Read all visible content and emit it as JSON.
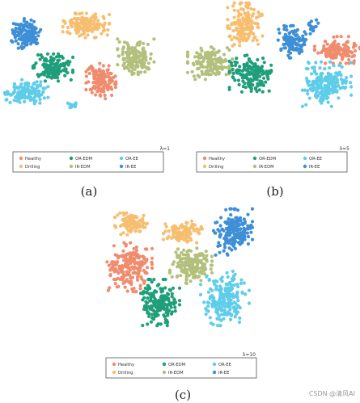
{
  "chart_data": [
    {
      "type": "scatter",
      "caption": "(a)",
      "lambda_label": "λ=1",
      "legend": [
        "Healthy",
        "OR-EDM",
        "OR-EE",
        "Drilling",
        "IR-EDM",
        "IR-EE"
      ],
      "clusters": [
        {
          "class": "IR-EE",
          "cx": 0.12,
          "cy": 0.2,
          "rx": 0.09,
          "ry": 0.11,
          "n": 140
        },
        {
          "class": "Drilling",
          "cx": 0.48,
          "cy": 0.14,
          "rx": 0.14,
          "ry": 0.09,
          "n": 160
        },
        {
          "class": "IR-EDM",
          "cx": 0.78,
          "cy": 0.37,
          "rx": 0.11,
          "ry": 0.13,
          "n": 170
        },
        {
          "class": "OR-EDM",
          "cx": 0.28,
          "cy": 0.45,
          "rx": 0.12,
          "ry": 0.1,
          "n": 150
        },
        {
          "class": "Healthy",
          "cx": 0.57,
          "cy": 0.55,
          "rx": 0.09,
          "ry": 0.13,
          "n": 150
        },
        {
          "class": "OR-EE",
          "cx": 0.12,
          "cy": 0.63,
          "rx": 0.13,
          "ry": 0.09,
          "n": 140
        },
        {
          "class": "OR-EE",
          "cx": 0.4,
          "cy": 0.73,
          "rx": 0.03,
          "ry": 0.03,
          "n": 12
        }
      ]
    },
    {
      "type": "scatter",
      "caption": "(b)",
      "lambda_label": "λ=5",
      "legend": [
        "Healthy",
        "OR-EDM",
        "OR-EE",
        "Drilling",
        "IR-EDM",
        "IR-EE"
      ],
      "clusters": [
        {
          "class": "Drilling",
          "cx": 0.33,
          "cy": 0.17,
          "rx": 0.1,
          "ry": 0.16,
          "n": 160
        },
        {
          "class": "IR-EE",
          "cx": 0.6,
          "cy": 0.3,
          "rx": 0.08,
          "ry": 0.12,
          "n": 110
        },
        {
          "class": "IR-EE",
          "cx": 0.72,
          "cy": 0.18,
          "rx": 0.03,
          "ry": 0.06,
          "n": 20
        },
        {
          "class": "Healthy",
          "cx": 0.86,
          "cy": 0.36,
          "rx": 0.13,
          "ry": 0.1,
          "n": 140
        },
        {
          "class": "IR-EDM",
          "cx": 0.13,
          "cy": 0.46,
          "rx": 0.13,
          "ry": 0.12,
          "n": 150
        },
        {
          "class": "OR-EDM",
          "cx": 0.36,
          "cy": 0.54,
          "rx": 0.12,
          "ry": 0.14,
          "n": 170
        },
        {
          "class": "OR-EE",
          "cx": 0.8,
          "cy": 0.62,
          "rx": 0.14,
          "ry": 0.17,
          "n": 200
        }
      ]
    },
    {
      "type": "scatter",
      "caption": "(c)",
      "lambda_label": "λ=10",
      "legend": [
        "Healthy",
        "OR-EDM",
        "OR-EE",
        "Drilling",
        "IR-EDM",
        "IR-EE"
      ],
      "clusters": [
        {
          "class": "Drilling",
          "cx": 0.19,
          "cy": 0.09,
          "rx": 0.1,
          "ry": 0.08,
          "n": 110
        },
        {
          "class": "Drilling",
          "cx": 0.51,
          "cy": 0.15,
          "rx": 0.12,
          "ry": 0.08,
          "n": 110
        },
        {
          "class": "IR-EE",
          "cx": 0.82,
          "cy": 0.15,
          "rx": 0.12,
          "ry": 0.17,
          "n": 180
        },
        {
          "class": "Healthy",
          "cx": 0.18,
          "cy": 0.41,
          "rx": 0.14,
          "ry": 0.18,
          "n": 200
        },
        {
          "class": "IR-EDM",
          "cx": 0.56,
          "cy": 0.4,
          "rx": 0.13,
          "ry": 0.13,
          "n": 170
        },
        {
          "class": "OR-EDM",
          "cx": 0.37,
          "cy": 0.67,
          "rx": 0.12,
          "ry": 0.17,
          "n": 180
        },
        {
          "class": "OR-EE",
          "cx": 0.77,
          "cy": 0.64,
          "rx": 0.15,
          "ry": 0.2,
          "n": 200
        }
      ]
    }
  ],
  "colors": {
    "Healthy": "#f08c6e",
    "OR-EDM": "#1f9e7a",
    "OR-EE": "#5fcdea",
    "Drilling": "#f7be70",
    "IR-EDM": "#b3c07d",
    "IR-EE": "#3e8fd6"
  },
  "watermark": "CSDN @清风AI"
}
